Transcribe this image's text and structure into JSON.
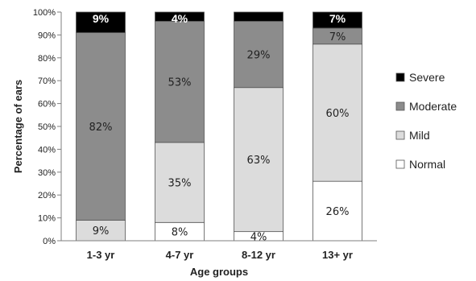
{
  "chart_data": {
    "type": "bar",
    "stacked": true,
    "categories": [
      "1-3 yr",
      "4-7 yr",
      "8-12 yr",
      "13+ yr"
    ],
    "series": [
      {
        "name": "Normal",
        "color": "#ffffff",
        "values": [
          0,
          8,
          4,
          26
        ],
        "labels": [
          "",
          "8%",
          "4%",
          "26%"
        ]
      },
      {
        "name": "Mild",
        "color": "#dcdcdc",
        "values": [
          9,
          35,
          63,
          60
        ],
        "labels": [
          "9%",
          "35%",
          "63%",
          "60%"
        ]
      },
      {
        "name": "Moderate",
        "color": "#8c8c8c",
        "values": [
          82,
          53,
          29,
          7
        ],
        "labels": [
          "82%",
          "53%",
          "29%",
          "7%"
        ]
      },
      {
        "name": "Severe",
        "color": "#000000",
        "values": [
          9,
          4,
          4,
          7
        ],
        "labels": [
          "9%",
          "4%",
          "",
          "7%"
        ]
      }
    ],
    "ylabel": "Percentage of ears",
    "xlabel": "Age groups",
    "ylim": [
      0,
      100
    ],
    "yticks": [
      "0%",
      "10%",
      "20%",
      "30%",
      "40%",
      "50%",
      "60%",
      "70%",
      "80%",
      "90%",
      "100%"
    ],
    "legend_position": "right",
    "legend_order": [
      "Severe",
      "Moderate",
      "Mild",
      "Normal"
    ],
    "grid": false
  }
}
